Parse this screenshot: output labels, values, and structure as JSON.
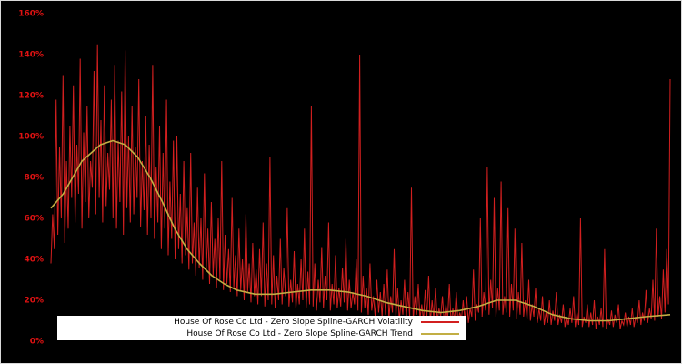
{
  "colors": {
    "background": "#000000",
    "volatility": "#d21f1f",
    "trend": "#c2ae44",
    "axis_label": "#e01212",
    "legend_bg": "#ffffff",
    "legend_text": "#000000"
  },
  "legend": {
    "volatility_label": "House Of Rose Co Ltd - Zero Slope Spline-GARCH Volatility",
    "trend_label": "House Of Rose Co Ltd - Zero Slope Spline-GARCH Trend"
  },
  "chart_data": {
    "type": "line",
    "title": "",
    "xlabel": "",
    "ylabel": "",
    "ylim": [
      0,
      160
    ],
    "grid": false,
    "legend_position": "bottom-center",
    "y_ticks": [
      {
        "value": 0,
        "label": "0%"
      },
      {
        "value": 20,
        "label": "20%"
      },
      {
        "value": 40,
        "label": "40%"
      },
      {
        "value": 60,
        "label": "60%"
      },
      {
        "value": 80,
        "label": "80%"
      },
      {
        "value": 100,
        "label": "100%"
      },
      {
        "value": 120,
        "label": "120%"
      },
      {
        "value": 140,
        "label": "140%"
      },
      {
        "value": 160,
        "label": "160%"
      }
    ],
    "series": [
      {
        "name": "House Of Rose Co Ltd - Zero Slope Spline-GARCH Volatility",
        "color_key": "volatility",
        "unit": "%",
        "values": [
          38,
          62,
          45,
          118,
          52,
          95,
          60,
          130,
          48,
          88,
          55,
          105,
          70,
          125,
          58,
          96,
          72,
          138,
          55,
          102,
          68,
          115,
          60,
          88,
          75,
          132,
          62,
          145,
          70,
          108,
          58,
          125,
          66,
          92,
          74,
          118,
          60,
          135,
          55,
          98,
          68,
          122,
          52,
          142,
          65,
          100,
          58,
          115,
          62,
          95,
          70,
          128,
          56,
          88,
          64,
          110,
          52,
          96,
          60,
          135,
          50,
          85,
          58,
          105,
          45,
          92,
          55,
          118,
          42,
          78,
          50,
          98,
          40,
          100,
          45,
          72,
          38,
          88,
          42,
          65,
          35,
          92,
          38,
          58,
          32,
          75,
          36,
          60,
          30,
          82,
          34,
          55,
          28,
          68,
          32,
          50,
          26,
          60,
          30,
          88,
          25,
          52,
          28,
          45,
          24,
          70,
          26,
          42,
          22,
          55,
          25,
          40,
          20,
          62,
          24,
          38,
          19,
          48,
          22,
          35,
          18,
          45,
          22,
          58,
          17,
          38,
          20,
          90,
          18,
          42,
          16,
          32,
          20,
          50,
          18,
          36,
          22,
          65,
          17,
          30,
          19,
          44,
          16,
          28,
          18,
          40,
          20,
          55,
          16,
          34,
          18,
          115,
          17,
          38,
          15,
          30,
          19,
          46,
          16,
          32,
          20,
          58,
          15,
          28,
          18,
          42,
          16,
          26,
          17,
          36,
          19,
          50,
          15,
          30,
          16,
          24,
          18,
          40,
          15,
          140,
          14,
          32,
          16,
          26,
          13,
          38,
          15,
          22,
          12,
          30,
          14,
          24,
          12,
          28,
          13,
          35,
          11,
          22,
          14,
          45,
          12,
          26,
          10,
          20,
          13,
          30,
          11,
          24,
          12,
          75,
          10,
          22,
          13,
          28,
          11,
          18,
          10,
          25,
          12,
          32,
          9,
          20,
          11,
          26,
          10,
          16,
          12,
          22,
          9,
          18,
          11,
          28,
          8,
          16,
          10,
          24,
          9,
          14,
          11,
          20,
          10,
          22,
          9,
          16,
          12,
          35,
          10,
          18,
          14,
          60,
          12,
          24,
          15,
          85,
          13,
          30,
          16,
          70,
          12,
          26,
          15,
          78,
          13,
          22,
          14,
          65,
          12,
          28,
          15,
          55,
          11,
          24,
          13,
          48,
          12,
          20,
          11,
          30,
          10,
          18,
          12,
          26,
          9,
          16,
          10,
          22,
          8,
          14,
          9,
          20,
          8,
          15,
          10,
          24,
          8,
          13,
          9,
          18,
          7,
          12,
          8,
          16,
          9,
          22,
          7,
          14,
          8,
          60,
          7,
          12,
          9,
          18,
          7,
          14,
          8,
          20,
          6,
          12,
          8,
          16,
          7,
          45,
          6,
          11,
          8,
          15,
          7,
          13,
          9,
          18,
          6,
          10,
          8,
          14,
          7,
          12,
          8,
          16,
          7,
          12,
          9,
          20,
          8,
          14,
          10,
          25,
          9,
          16,
          11,
          30,
          10,
          55,
          12,
          22,
          11,
          35,
          14,
          45,
          18,
          128
        ]
      },
      {
        "name": "House Of Rose Co Ltd - Zero Slope Spline-GARCH Trend",
        "color_key": "trend",
        "unit": "%",
        "x": [
          0,
          0.02,
          0.05,
          0.08,
          0.1,
          0.12,
          0.14,
          0.16,
          0.18,
          0.2,
          0.22,
          0.24,
          0.26,
          0.28,
          0.3,
          0.33,
          0.36,
          0.39,
          0.42,
          0.45,
          0.48,
          0.51,
          0.54,
          0.57,
          0.6,
          0.63,
          0.66,
          0.69,
          0.72,
          0.75,
          0.78,
          0.81,
          0.84,
          0.87,
          0.9,
          0.93,
          0.96,
          1.0
        ],
        "values": [
          65,
          72,
          88,
          96,
          98,
          96,
          90,
          80,
          68,
          55,
          45,
          38,
          32,
          28,
          25,
          23,
          23,
          24,
          25,
          25,
          24,
          22,
          19,
          17,
          15,
          14,
          15,
          17,
          20,
          20,
          17,
          13,
          11,
          10,
          10,
          11,
          12,
          13
        ]
      }
    ]
  }
}
